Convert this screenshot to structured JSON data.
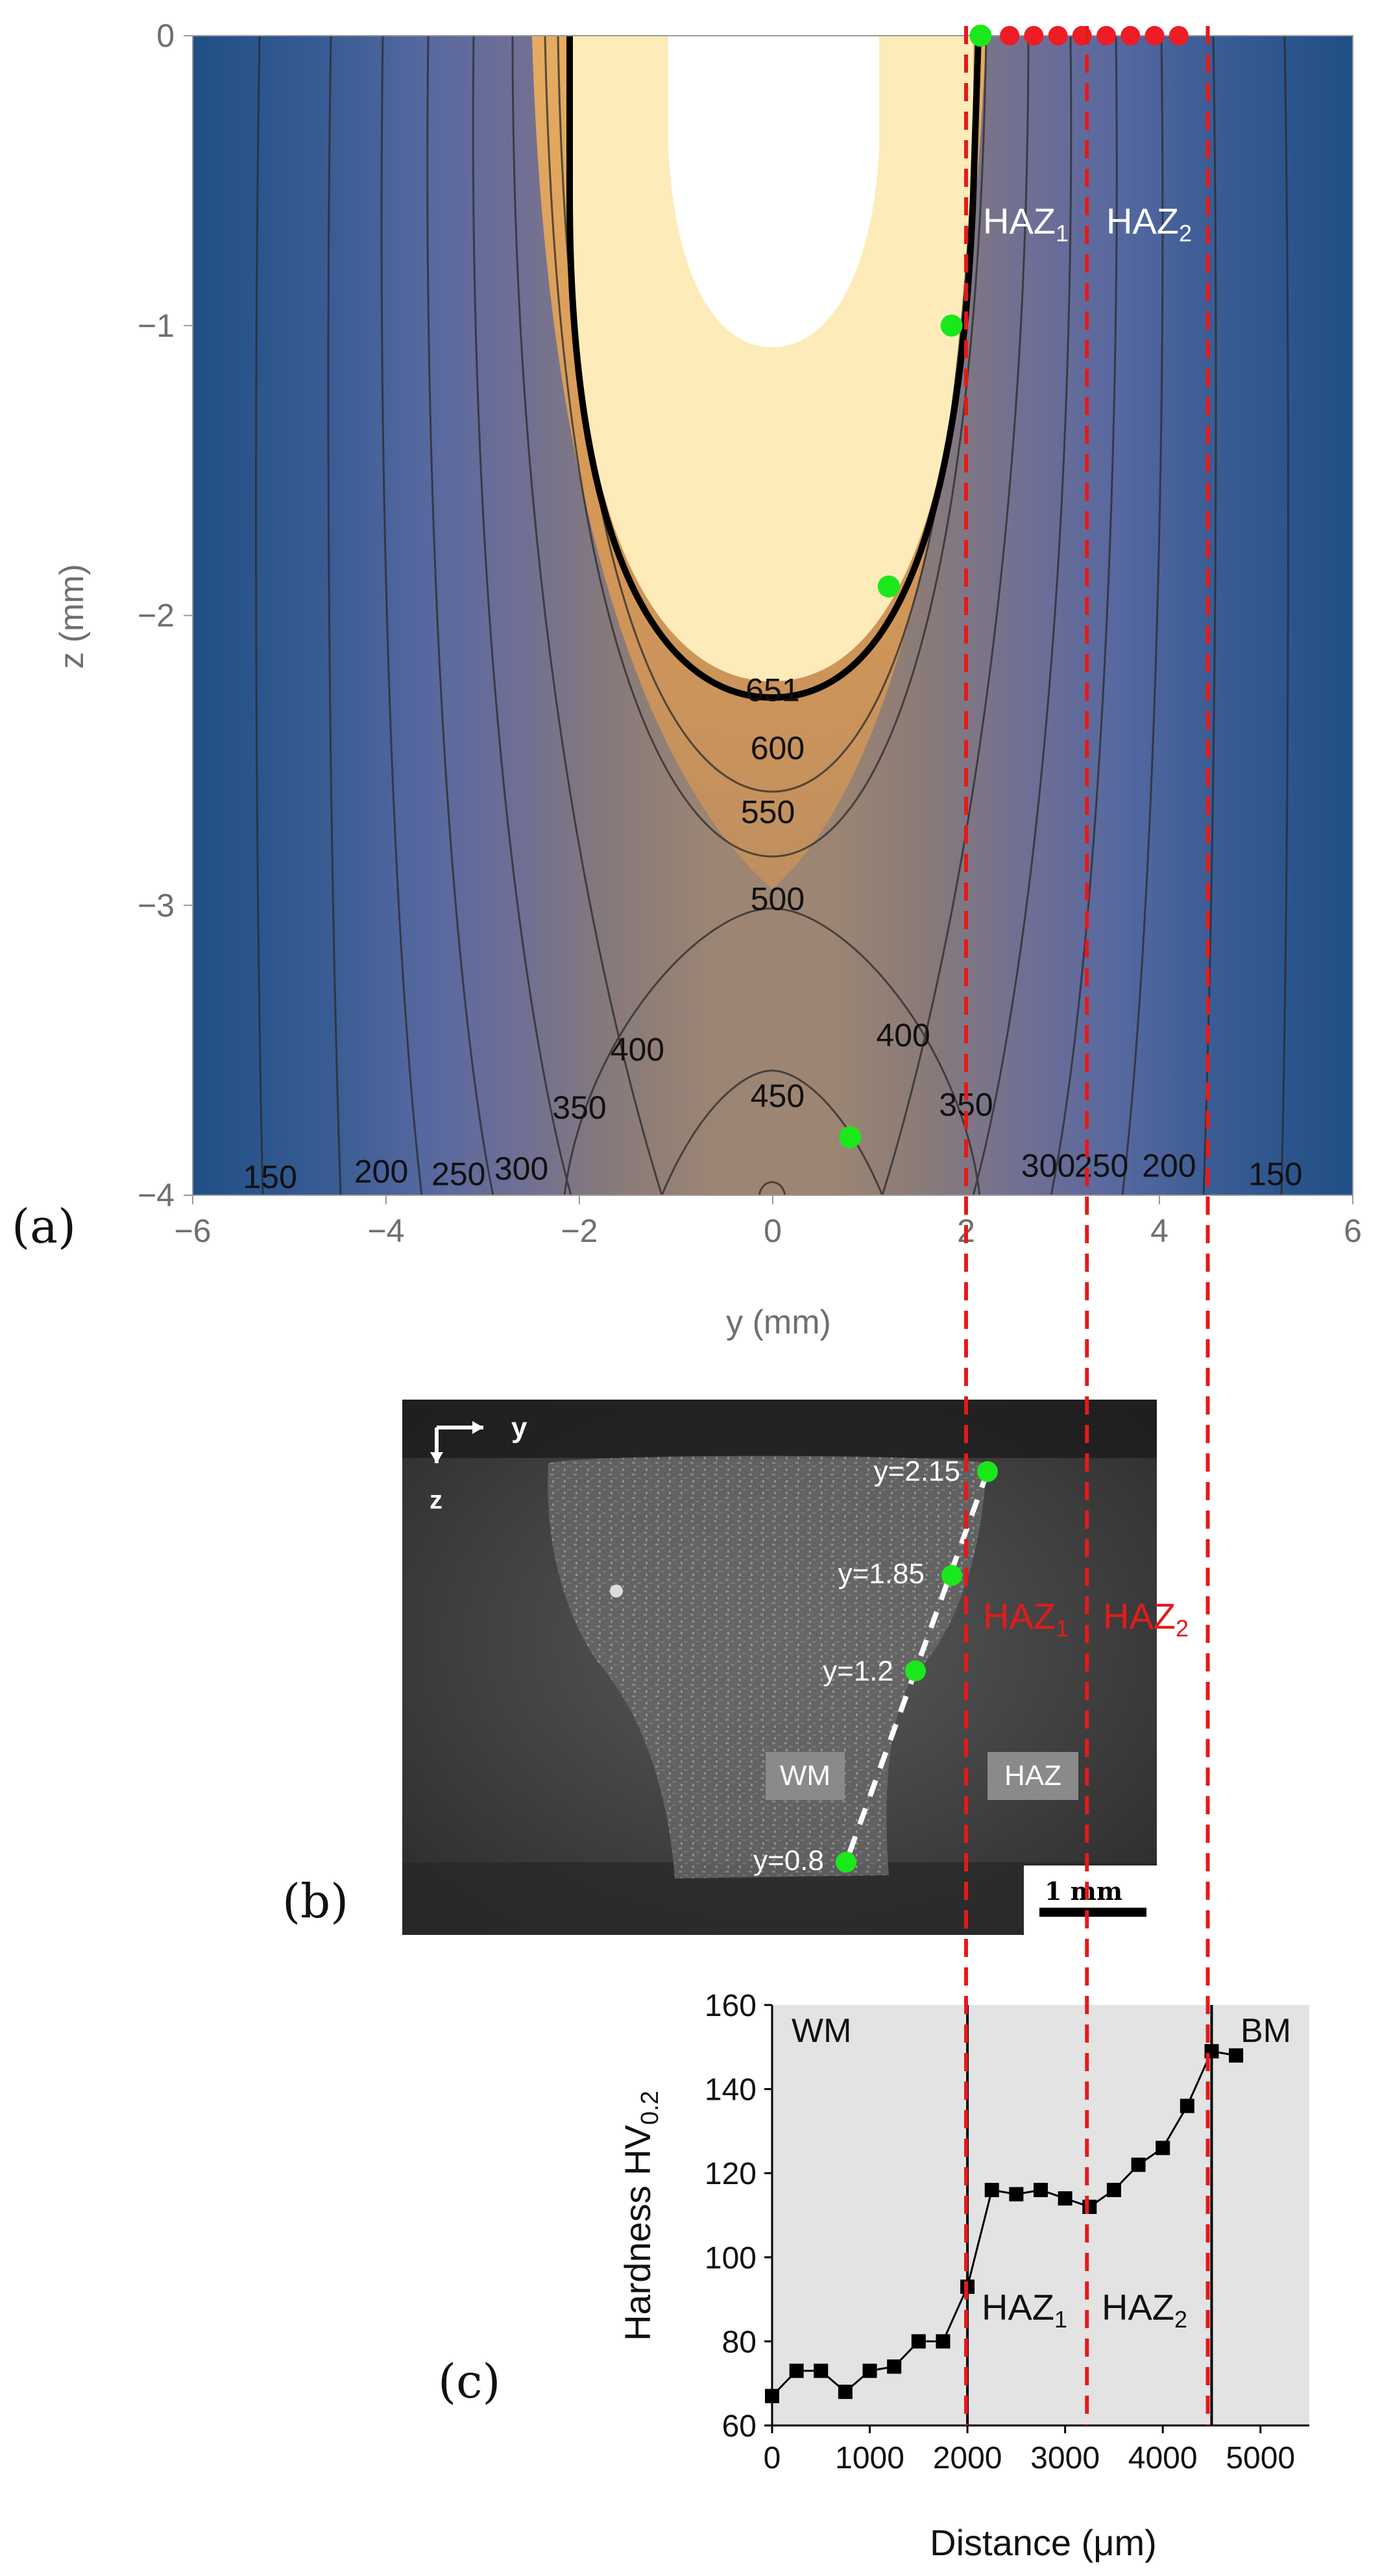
{
  "panels": {
    "a_label": "(a)",
    "b_label": "(b)",
    "c_label": "(c)"
  },
  "chart_data": [
    {
      "panel": "a",
      "type": "contour",
      "xlabel": "y (mm)",
      "ylabel": "z (mm)",
      "xlim": [
        -6,
        6
      ],
      "ylim": [
        -4,
        0
      ],
      "xticks": [
        "−6",
        "−4",
        "−2",
        "0",
        "2",
        "4",
        "6"
      ],
      "yticks": [
        "0",
        "−1",
        "−2",
        "−3",
        "−4"
      ],
      "contour_labels": [
        {
          "text": "651",
          "y": 0,
          "z": -2.26
        },
        {
          "text": "600",
          "y": 0.05,
          "z": -2.46
        },
        {
          "text": "550",
          "y": -0.05,
          "z": -2.68
        },
        {
          "text": "500",
          "y": 0.05,
          "z": -2.98
        },
        {
          "text": "400",
          "y": -1.4,
          "z": -3.5
        },
        {
          "text": "450",
          "y": 0.05,
          "z": -3.66
        },
        {
          "text": "400",
          "y": 1.35,
          "z": -3.45
        },
        {
          "text": "350",
          "y": -2.0,
          "z": -3.7
        },
        {
          "text": "350",
          "y": 2.0,
          "z": -3.69
        },
        {
          "text": "300",
          "y": -2.6,
          "z": -3.91
        },
        {
          "text": "250",
          "y": -3.25,
          "z": -3.93
        },
        {
          "text": "200",
          "y": -4.05,
          "z": -3.92
        },
        {
          "text": "150",
          "y": -5.2,
          "z": -3.94
        },
        {
          "text": "300",
          "y": 2.85,
          "z": -3.9
        },
        {
          "text": "250",
          "y": 3.4,
          "z": -3.9
        },
        {
          "text": "200",
          "y": 4.1,
          "z": -3.9
        },
        {
          "text": "150",
          "y": 5.2,
          "z": -3.93
        }
      ],
      "green_points": [
        {
          "y": 2.15,
          "z": 0
        },
        {
          "y": 1.85,
          "z": -1.0
        },
        {
          "y": 1.2,
          "z": -1.9
        },
        {
          "y": 0.8,
          "z": -3.8
        }
      ],
      "red_points_y": [
        2.45,
        2.7,
        2.95,
        3.2,
        3.45,
        3.7,
        3.95,
        4.2
      ],
      "zone_lines_y": [
        2.0,
        3.25,
        4.5
      ],
      "zone_labels": [
        "HAZ1",
        "HAZ2"
      ],
      "colors": {
        "hot": "#fdebb9",
        "warm": "#e8a04d",
        "mid": "#8f7a70",
        "cool": "#5566a0",
        "cold": "#1f4f85"
      }
    },
    {
      "panel": "b",
      "type": "micrograph",
      "axis_y": "y",
      "axis_z": "z",
      "points": [
        {
          "label": "y=2.15"
        },
        {
          "label": "y=1.85"
        },
        {
          "label": "y=1.2"
        },
        {
          "label": "y=0.8"
        }
      ],
      "region_labels": [
        "WM",
        "HAZ"
      ],
      "scale_bar": "1 mm",
      "zone_labels": [
        "HAZ1",
        "HAZ2"
      ]
    },
    {
      "panel": "c",
      "type": "line",
      "xlabel": "Distance (μm)",
      "ylabel": "Hardness HV0.2",
      "xlim": [
        0,
        5500
      ],
      "ylim": [
        60,
        160
      ],
      "xticks": [
        "0",
        "1000",
        "2000",
        "3000",
        "4000",
        "5000"
      ],
      "yticks": [
        "60",
        "80",
        "100",
        "120",
        "140",
        "160"
      ],
      "x": [
        0,
        250,
        500,
        750,
        1000,
        1250,
        1500,
        1750,
        2000,
        2250,
        2500,
        2750,
        3000,
        3250,
        3500,
        3750,
        4000,
        4250,
        4500,
        4750
      ],
      "y": [
        67,
        73,
        73,
        68,
        73,
        74,
        80,
        80,
        93,
        116,
        115,
        116,
        114,
        112,
        116,
        122,
        126,
        136,
        149,
        148
      ],
      "vlines_black": [
        2000,
        4500
      ],
      "vlines_red": [
        2000,
        3250,
        4500
      ],
      "region_labels": [
        "WM",
        "BM",
        "HAZ1",
        "HAZ2"
      ]
    }
  ]
}
